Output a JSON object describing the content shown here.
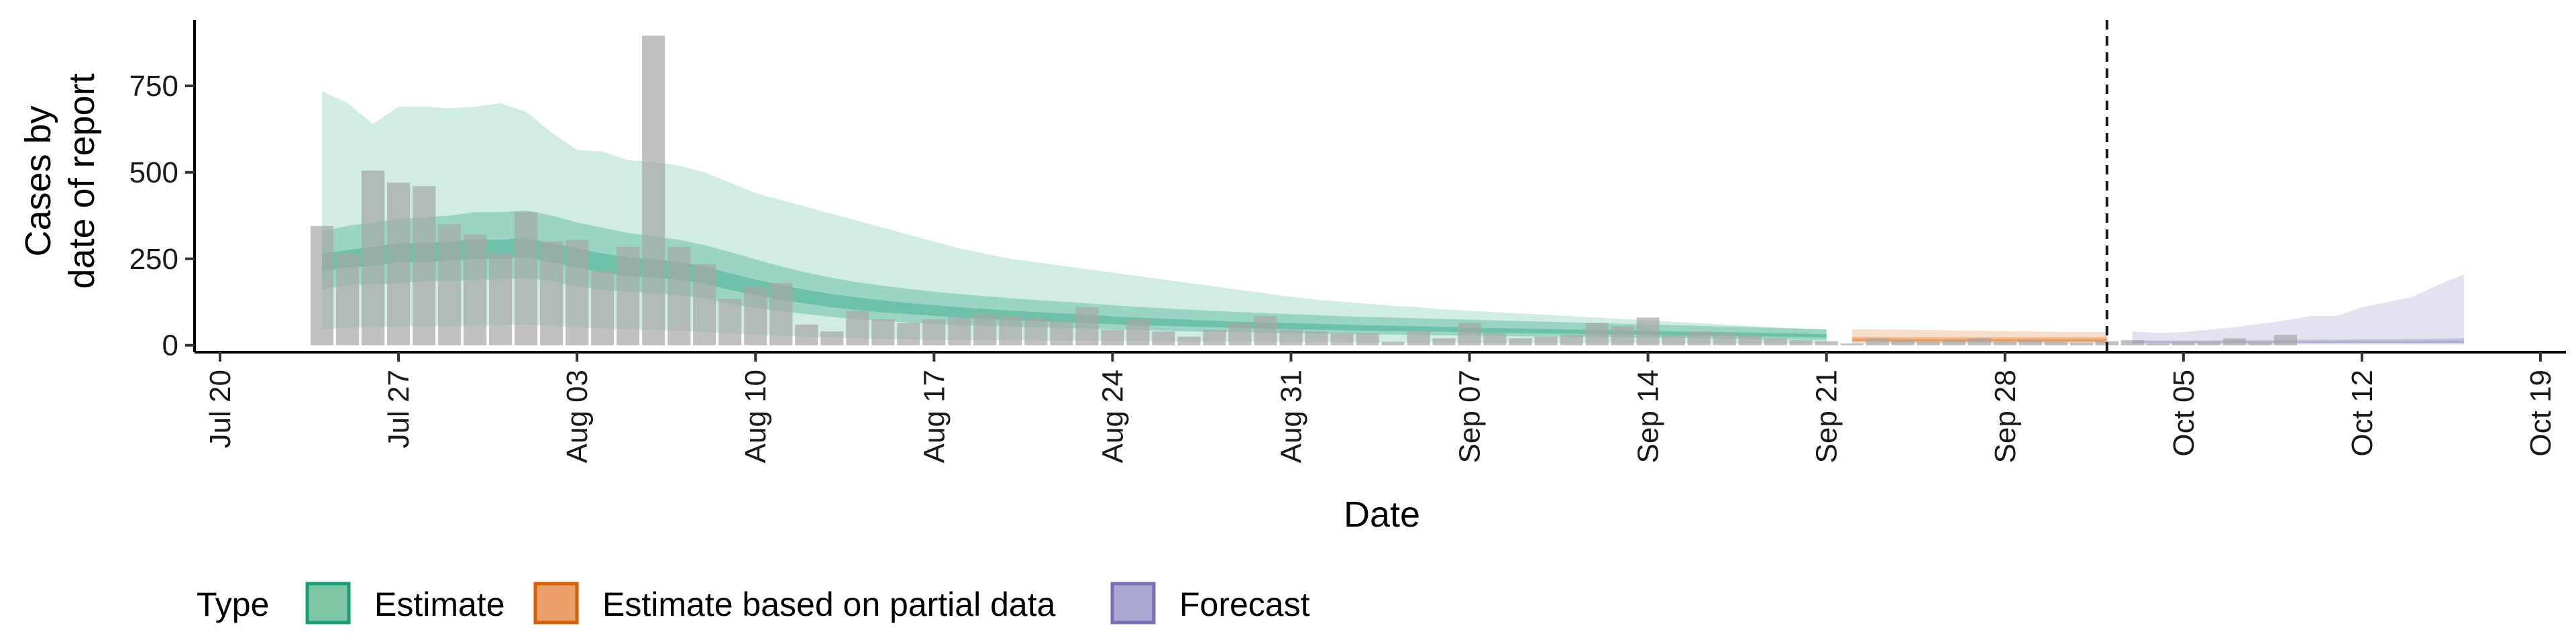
{
  "chart_data": {
    "type": "bar",
    "xlabel": "Date",
    "ylabel_lines": [
      "Cases by",
      "date of report"
    ],
    "x_domain": [
      "2020-07-19",
      "2020-10-20"
    ],
    "ylim": [
      -20,
      940
    ],
    "x_ticks": [
      {
        "date": "2020-07-20",
        "label": "Jul 20"
      },
      {
        "date": "2020-07-27",
        "label": "Jul 27"
      },
      {
        "date": "2020-08-03",
        "label": "Aug 03"
      },
      {
        "date": "2020-08-10",
        "label": "Aug 10"
      },
      {
        "date": "2020-08-17",
        "label": "Aug 17"
      },
      {
        "date": "2020-08-24",
        "label": "Aug 24"
      },
      {
        "date": "2020-08-31",
        "label": "Aug 31"
      },
      {
        "date": "2020-09-07",
        "label": "Sep 07"
      },
      {
        "date": "2020-09-14",
        "label": "Sep 14"
      },
      {
        "date": "2020-09-21",
        "label": "Sep 21"
      },
      {
        "date": "2020-09-28",
        "label": "Sep 28"
      },
      {
        "date": "2020-10-05",
        "label": "Oct 05"
      },
      {
        "date": "2020-10-12",
        "label": "Oct 12"
      },
      {
        "date": "2020-10-19",
        "label": "Oct 19"
      }
    ],
    "y_ticks": [
      0,
      250,
      500,
      750
    ],
    "reported_cases": {
      "start_date": "2020-07-24",
      "color": "#a6a6a6",
      "values": [
        345,
        265,
        505,
        470,
        460,
        350,
        320,
        265,
        385,
        300,
        305,
        215,
        285,
        895,
        285,
        235,
        135,
        170,
        180,
        60,
        40,
        100,
        75,
        65,
        75,
        80,
        90,
        85,
        80,
        70,
        110,
        45,
        75,
        40,
        25,
        45,
        65,
        85,
        45,
        40,
        35,
        35,
        10,
        40,
        20,
        65,
        35,
        20,
        25,
        30,
        65,
        55,
        80,
        30,
        40,
        35,
        30,
        20,
        15,
        12,
        5,
        20,
        15,
        10,
        15,
        20,
        10,
        15,
        10,
        8,
        12,
        15,
        5,
        10,
        10,
        20,
        10,
        30
      ]
    },
    "estimate": {
      "start_date": "2020-07-24",
      "color": "#1b9e77",
      "lower90": [
        45,
        50,
        52,
        54,
        55,
        55,
        56,
        58,
        60,
        56,
        52,
        48,
        46,
        44,
        42,
        38,
        34,
        30,
        28,
        24,
        22,
        20,
        18,
        17,
        16,
        15,
        15,
        14,
        14,
        13,
        13,
        12,
        12,
        11,
        11,
        10,
        10,
        10,
        9,
        9,
        9,
        8,
        8,
        8,
        8,
        7,
        7,
        7,
        7,
        6,
        6,
        6,
        6,
        6,
        5,
        5,
        5,
        5,
        5,
        4
      ],
      "lower50": [
        160,
        175,
        175,
        180,
        185,
        185,
        190,
        190,
        195,
        185,
        170,
        160,
        155,
        150,
        145,
        135,
        120,
        108,
        98,
        90,
        82,
        75,
        70,
        66,
        62,
        58,
        56,
        54,
        52,
        50,
        48,
        46,
        44,
        42,
        40,
        39,
        38,
        36,
        35,
        34,
        33,
        32,
        31,
        30,
        29,
        28,
        27,
        26,
        25,
        25,
        24,
        23,
        22,
        21,
        20,
        19,
        18,
        17,
        16,
        15
      ],
      "lower20": [
        215,
        225,
        230,
        240,
        240,
        245,
        250,
        250,
        255,
        240,
        225,
        210,
        200,
        195,
        190,
        178,
        160,
        145,
        132,
        120,
        110,
        102,
        95,
        90,
        85,
        80,
        76,
        73,
        70,
        67,
        64,
        61,
        58,
        56,
        54,
        52,
        50,
        48,
        47,
        45,
        44,
        42,
        41,
        40,
        39,
        37,
        36,
        35,
        34,
        33,
        32,
        31,
        30,
        29,
        28,
        27,
        26,
        25,
        24,
        22
      ],
      "upper20": [
        265,
        275,
        285,
        295,
        295,
        300,
        305,
        305,
        310,
        295,
        280,
        265,
        255,
        248,
        240,
        228,
        208,
        190,
        174,
        160,
        148,
        138,
        130,
        122,
        116,
        110,
        105,
        100,
        96,
        92,
        88,
        84,
        80,
        77,
        74,
        71,
        68,
        66,
        64,
        62,
        60,
        58,
        56,
        55,
        53,
        51,
        50,
        48,
        47,
        46,
        44,
        43,
        42,
        40,
        39,
        38,
        37,
        35,
        34,
        32
      ],
      "upper50": [
        330,
        345,
        355,
        365,
        370,
        375,
        385,
        385,
        390,
        375,
        355,
        340,
        325,
        315,
        305,
        290,
        270,
        248,
        228,
        210,
        195,
        182,
        172,
        163,
        155,
        148,
        142,
        136,
        131,
        126,
        121,
        116,
        111,
        107,
        103,
        99,
        96,
        93,
        90,
        87,
        84,
        82,
        80,
        78,
        76,
        74,
        72,
        70,
        68,
        66,
        64,
        62,
        60,
        58,
        56,
        54,
        52,
        50,
        48,
        46
      ],
      "upper90": [
        735,
        700,
        640,
        690,
        690,
        685,
        690,
        700,
        675,
        615,
        565,
        560,
        535,
        530,
        520,
        500,
        470,
        440,
        420,
        400,
        380,
        360,
        340,
        320,
        300,
        280,
        265,
        250,
        240,
        230,
        220,
        210,
        200,
        190,
        180,
        170,
        160,
        150,
        140,
        132,
        126,
        120,
        114,
        110,
        104,
        100,
        96,
        92,
        88,
        84,
        80,
        76,
        72,
        68,
        64,
        60,
        56,
        52,
        48,
        46
      ]
    },
    "partial_estimate": {
      "start_date": "2020-09-22",
      "color": "#d95f02",
      "lower90": [
        4,
        4,
        4,
        4,
        4,
        4,
        4,
        4,
        4,
        4,
        4
      ],
      "lower50": [
        10,
        10,
        9,
        9,
        9,
        9,
        9,
        9,
        9,
        9,
        9
      ],
      "lower20": [
        13,
        13,
        12,
        12,
        12,
        12,
        12,
        12,
        12,
        12,
        12
      ],
      "upper20": [
        18,
        18,
        17,
        17,
        17,
        17,
        17,
        17,
        17,
        17,
        17
      ],
      "upper50": [
        24,
        24,
        23,
        23,
        23,
        23,
        23,
        23,
        23,
        23,
        23
      ],
      "upper90": [
        46,
        46,
        45,
        44,
        43,
        42,
        41,
        40,
        39,
        38,
        38
      ]
    },
    "forecast": {
      "start_date": "2020-10-03",
      "color": "#7570b3",
      "lower90": [
        2,
        2,
        2,
        2,
        2,
        2,
        2,
        2,
        2,
        2,
        2,
        2,
        2,
        2
      ],
      "lower50": [
        6,
        6,
        6,
        6,
        6,
        6,
        6,
        6,
        6,
        6,
        6,
        6,
        6,
        6
      ],
      "lower20": [
        8,
        8,
        8,
        8,
        8,
        8,
        8,
        8,
        8,
        8,
        8,
        8,
        8,
        8
      ],
      "upper20": [
        10,
        10,
        10,
        10,
        10,
        10,
        10,
        10,
        11,
        11,
        11,
        11,
        12,
        12
      ],
      "upper50": [
        14,
        14,
        14,
        14,
        15,
        15,
        15,
        16,
        16,
        17,
        17,
        18,
        19,
        20
      ],
      "upper90": [
        40,
        36,
        38,
        45,
        52,
        62,
        72,
        85,
        85,
        110,
        125,
        140,
        175,
        205
      ]
    },
    "vline_date": "2020-10-02",
    "legend": {
      "title": "Type",
      "items": [
        {
          "label": "Estimate",
          "fill": "#7fc6a6",
          "stroke": "#1b9e77"
        },
        {
          "label": "Estimate based on partial data",
          "fill": "#eba06a",
          "stroke": "#d95f02"
        },
        {
          "label": "Forecast",
          "fill": "#aaa7d3",
          "stroke": "#7570b3"
        }
      ]
    }
  }
}
